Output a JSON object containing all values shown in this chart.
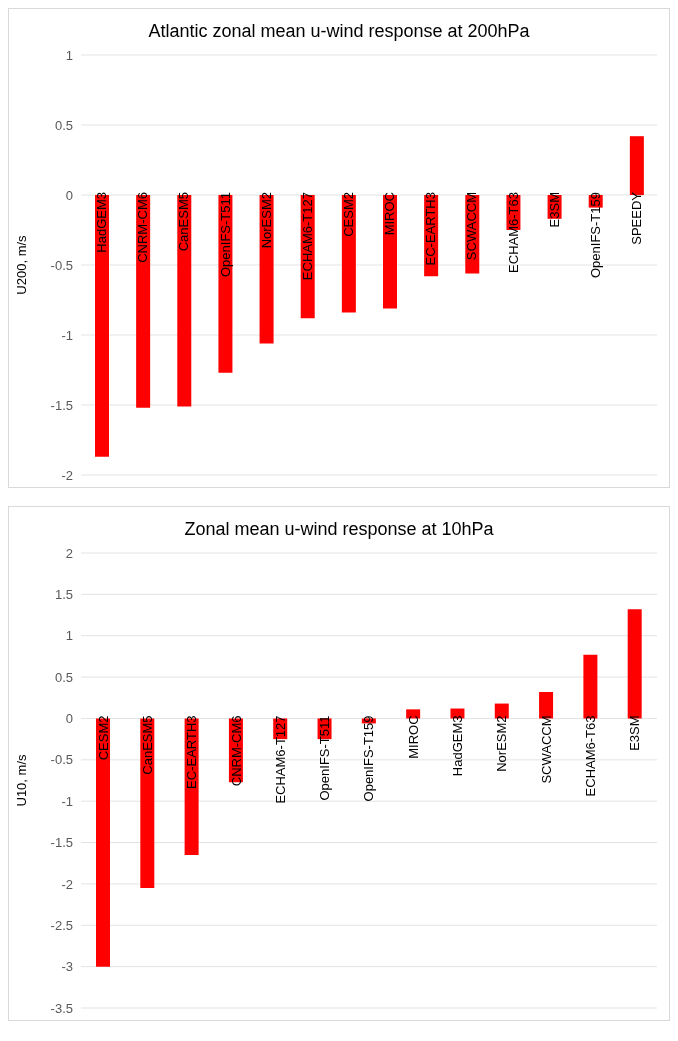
{
  "chart_data": [
    {
      "type": "bar",
      "title": "Atlantic zonal mean u-wind response at 200hPa",
      "ylabel": "U200, m/s",
      "categories": [
        "HadGEM3",
        "CNRM-CM6",
        "CanESM5",
        "OpenIFS-T511",
        "NorESM2",
        "ECHAM6-T127",
        "CESM2",
        "MIROC",
        "EC-EARTH3",
        "SCWACCM",
        "ECHAM6-T63",
        "E3SM",
        "OpenIFS-T159",
        "SPEEDY"
      ],
      "values": [
        -1.87,
        -1.52,
        -1.51,
        -1.27,
        -1.06,
        -0.88,
        -0.84,
        -0.81,
        -0.58,
        -0.56,
        -0.25,
        -0.17,
        -0.09,
        0.42
      ],
      "color": "#ff0000",
      "ylim": [
        -2,
        1
      ],
      "yticks": [
        -2,
        -1.5,
        -1,
        -0.5,
        0,
        0.5,
        1
      ],
      "grid": "y"
    },
    {
      "type": "bar",
      "title": "Zonal mean u-wind response at 10hPa",
      "ylabel": "U10, m/s",
      "categories": [
        "CESM2",
        "CanESM5",
        "EC-EARTH3",
        "CNRM-CM6",
        "ECHAM6-T127",
        "OpenIFS-T511",
        "OpenIFS-T159",
        "MIROC",
        "HadGEM3",
        "NorESM2",
        "SCWACCM",
        "ECHAM6-T63",
        "E3SM"
      ],
      "values": [
        -3.0,
        -2.05,
        -1.65,
        -0.77,
        -0.25,
        -0.25,
        -0.06,
        0.11,
        0.12,
        0.18,
        0.32,
        0.77,
        1.32
      ],
      "color": "#ff0000",
      "ylim": [
        -3.5,
        2
      ],
      "yticks": [
        -3.5,
        -3,
        -2.5,
        -2,
        -1.5,
        -1,
        -0.5,
        0,
        0.5,
        1,
        1.5,
        2
      ],
      "grid": "y"
    }
  ]
}
